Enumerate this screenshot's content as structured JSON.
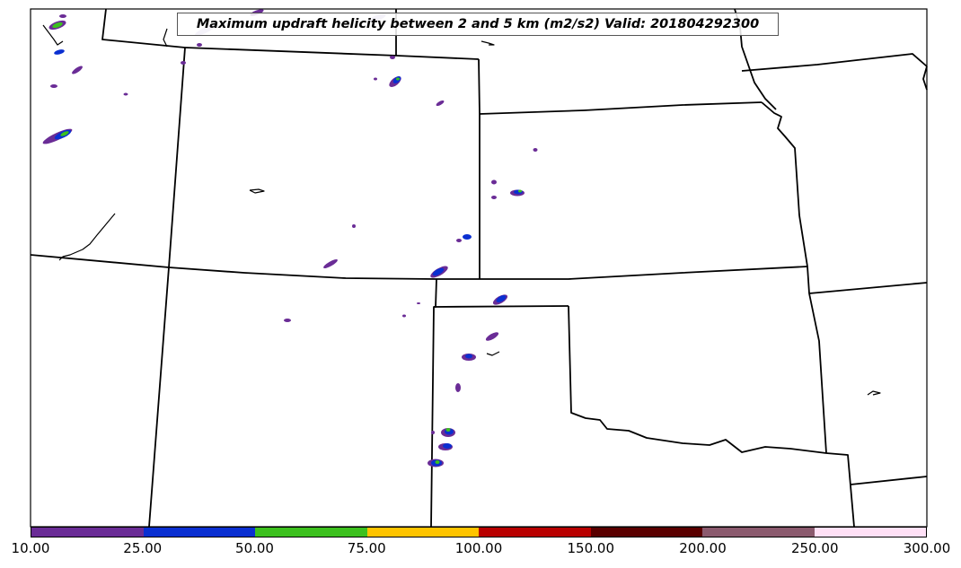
{
  "title": "Maximum updraft helicity between 2 and 5 km (m2/s2) Valid: 201804292300",
  "colorbar": {
    "labels": [
      "10.00",
      "25.00",
      "50.00",
      "75.00",
      "100.00",
      "150.00",
      "200.00",
      "250.00",
      "300.00"
    ],
    "colors": [
      "#6a2c96",
      "#0a2fd1",
      "#3cc01e",
      "#ffc400",
      "#b80000",
      "#5a0000",
      "#8b5a6e",
      "#ffe0f6"
    ]
  }
}
